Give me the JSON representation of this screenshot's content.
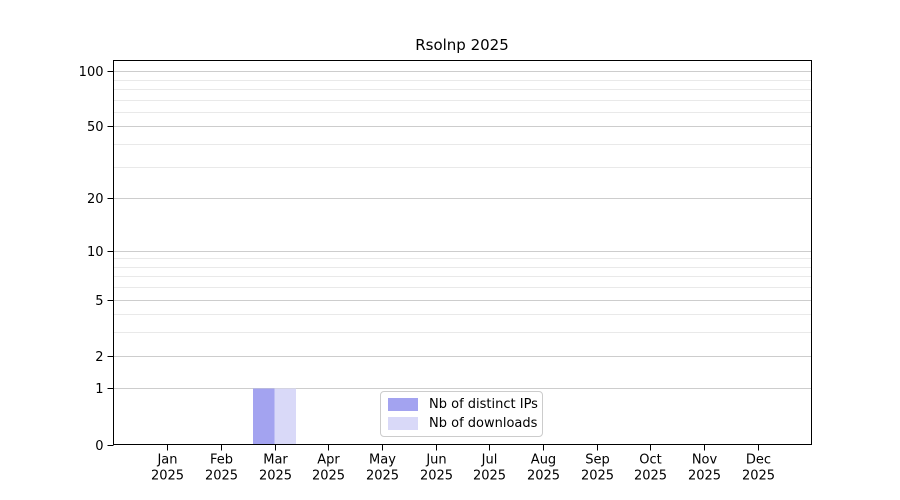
{
  "chart_data": {
    "type": "bar",
    "title": "Rsolnp 2025",
    "x_tick_labels": [
      {
        "month": "Jan",
        "year": "2025"
      },
      {
        "month": "Feb",
        "year": "2025"
      },
      {
        "month": "Mar",
        "year": "2025"
      },
      {
        "month": "Apr",
        "year": "2025"
      },
      {
        "month": "May",
        "year": "2025"
      },
      {
        "month": "Jun",
        "year": "2025"
      },
      {
        "month": "Jul",
        "year": "2025"
      },
      {
        "month": "Aug",
        "year": "2025"
      },
      {
        "month": "Sep",
        "year": "2025"
      },
      {
        "month": "Oct",
        "year": "2025"
      },
      {
        "month": "Nov",
        "year": "2025"
      },
      {
        "month": "Dec",
        "year": "2025"
      }
    ],
    "series": [
      {
        "name": "Nb of distinct IPs",
        "color": "#a3a3f0",
        "values": [
          0,
          0,
          1,
          0,
          0,
          0,
          0,
          0,
          0,
          0,
          0,
          0
        ]
      },
      {
        "name": "Nb of downloads",
        "color": "#d9d9f8",
        "values": [
          0,
          0,
          1,
          0,
          0,
          0,
          0,
          0,
          0,
          0,
          0,
          0
        ]
      }
    ],
    "y_scale": "log10(1+y)",
    "y_major_ticks": [
      0,
      1,
      2,
      5,
      10,
      20,
      50,
      100
    ],
    "y_minor_gridlines": [
      3,
      4,
      6,
      7,
      8,
      9,
      30,
      40,
      60,
      70,
      80,
      90
    ],
    "ylim": [
      0,
      114.2
    ],
    "xlabel": "",
    "ylabel": "",
    "grid": "horizontal",
    "legend_position": "inside-bottom-center"
  },
  "colors": {
    "major_grid": "#cdcdcd",
    "minor_grid": "#e9e9e9",
    "axis": "#000000",
    "tick_label": "#000000",
    "legend_border": "#cccccc"
  }
}
